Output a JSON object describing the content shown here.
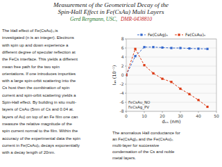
{
  "chart_data": {
    "type": "line",
    "title": "Measurement of the Geometrical Decay of the\nSpin-Hall Effect in Fe(CsAu) Multi Layers",
    "xlabel": "dₓₛ (nm)",
    "ylabel": "Iₐₙ (10⁻¹)",
    "x": [
      0,
      5,
      10,
      15,
      20,
      25,
      30,
      35,
      40,
      45
    ],
    "series": [
      {
        "name": "Fe(CsAg)ₙ",
        "color": "#3366cc",
        "values": [
          0,
          4.2,
          6.2,
          6.2,
          6.1,
          6.0,
          6.0,
          5.9,
          5.85,
          5.8
        ]
      },
      {
        "name": "Fe(CsAu)ₙ",
        "color": "#dc3912",
        "values": [
          0,
          5.8,
          2.2,
          0.4,
          -0.8,
          -1.5,
          -3.0,
          -4.2,
          -5.5,
          -7.0
        ]
      }
    ],
    "marker": "square",
    "line_style": "dashed",
    "xlim": [
      0,
      50
    ],
    "ylim": [
      -8,
      8
    ],
    "xticks": [
      0,
      10,
      20,
      30,
      40,
      50
    ],
    "yticks": [
      -8,
      -6,
      -4,
      -2,
      0,
      2,
      4,
      6,
      8
    ],
    "grid": true,
    "legend": "top",
    "annotations": [
      "FeCsAu_NO",
      "FeCsAg_PV"
    ]
  },
  "author": "Gerd Bergmann, USC,",
  "grant": "DMR-0438810",
  "body_text": "The Hall effect of Fe(CsAu)ₙ is\ninvestigated (n is an integer). Electrons\nwith spin up and down experience a\ndifferent degree of specular reflection at\nthe FeCs interface. This yields a different\nmean free path for the two spin\norientations. If one introduces impurities\nwith a large spin-orbit scattering into the\nCs host then the combination of spin\ncurrent and spin-orbit scattering yields a\nSpin-Hall effect. By building in situ multi-\nlayers of CsAu (5nm of Cs and 0.04 at.\nlayers of Au) on top of an Fe film one can\nmeasure the relative magnitude of the\nspin current normal to the film. Within the\naccuracy of the experimental data the spin\ncurrent in Fe(CsAu)ₙ decays exponentially\nwith a decay length of 20nm.",
  "caption": "The anomalous Hall conductance for\nan Fe(CsAg)ₙ and the Fe(CsAu)ₙ\nmulti-layer for successive\ncondensation of the Cs and noble\nmetal layers."
}
